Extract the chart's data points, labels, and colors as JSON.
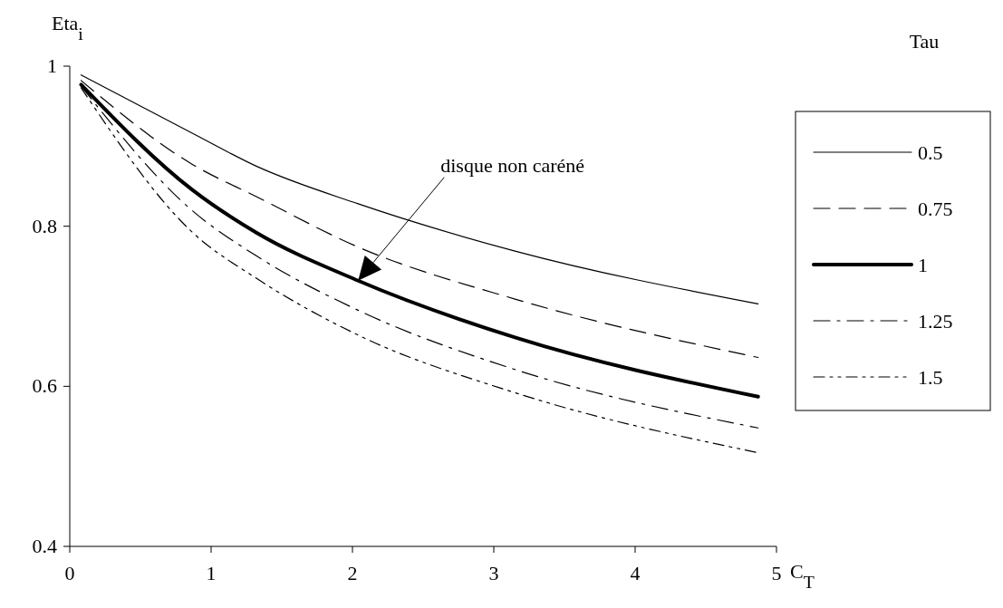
{
  "chart_data": {
    "type": "line",
    "xlabel": "C$_{T}$",
    "ylabel": "Eta$_{i}$",
    "legend_title": "Tau",
    "legend": "right",
    "x": [
      0.08,
      0.87,
      1.32,
      2.04,
      3.15,
      4.87
    ],
    "xlim": [
      0,
      5
    ],
    "xticks": [
      0,
      1,
      2,
      3,
      4,
      5
    ],
    "ylim": [
      0.4,
      1
    ],
    "yticks": [
      0.4,
      0.6,
      0.8,
      1
    ],
    "series": [
      {
        "name": "0.5",
        "color": "#000000",
        "line_style": "solid",
        "values": [
          0.989,
          0.916,
          0.875,
          0.828,
          0.769,
          0.703
        ]
      },
      {
        "name": "0.75",
        "color": "#000000",
        "line_style": "dashed",
        "values": [
          0.982,
          0.877,
          0.837,
          0.774,
          0.709,
          0.636
        ]
      },
      {
        "name": "1",
        "color": "#000000",
        "line_style": "solid",
        "values": [
          0.977,
          0.845,
          0.792,
          0.732,
          0.661,
          0.587
        ]
      },
      {
        "name": "1.25",
        "color": "#000000",
        "line_style": "dashdot",
        "values": [
          0.975,
          0.819,
          0.763,
          0.695,
          0.621,
          0.548
        ]
      },
      {
        "name": "1.5",
        "color": "#000000",
        "line_style": "dashdotdot",
        "values": [
          0.973,
          0.792,
          0.735,
          0.664,
          0.592,
          0.517
        ]
      }
    ],
    "annotations": [
      "disque non caréné"
    ]
  }
}
